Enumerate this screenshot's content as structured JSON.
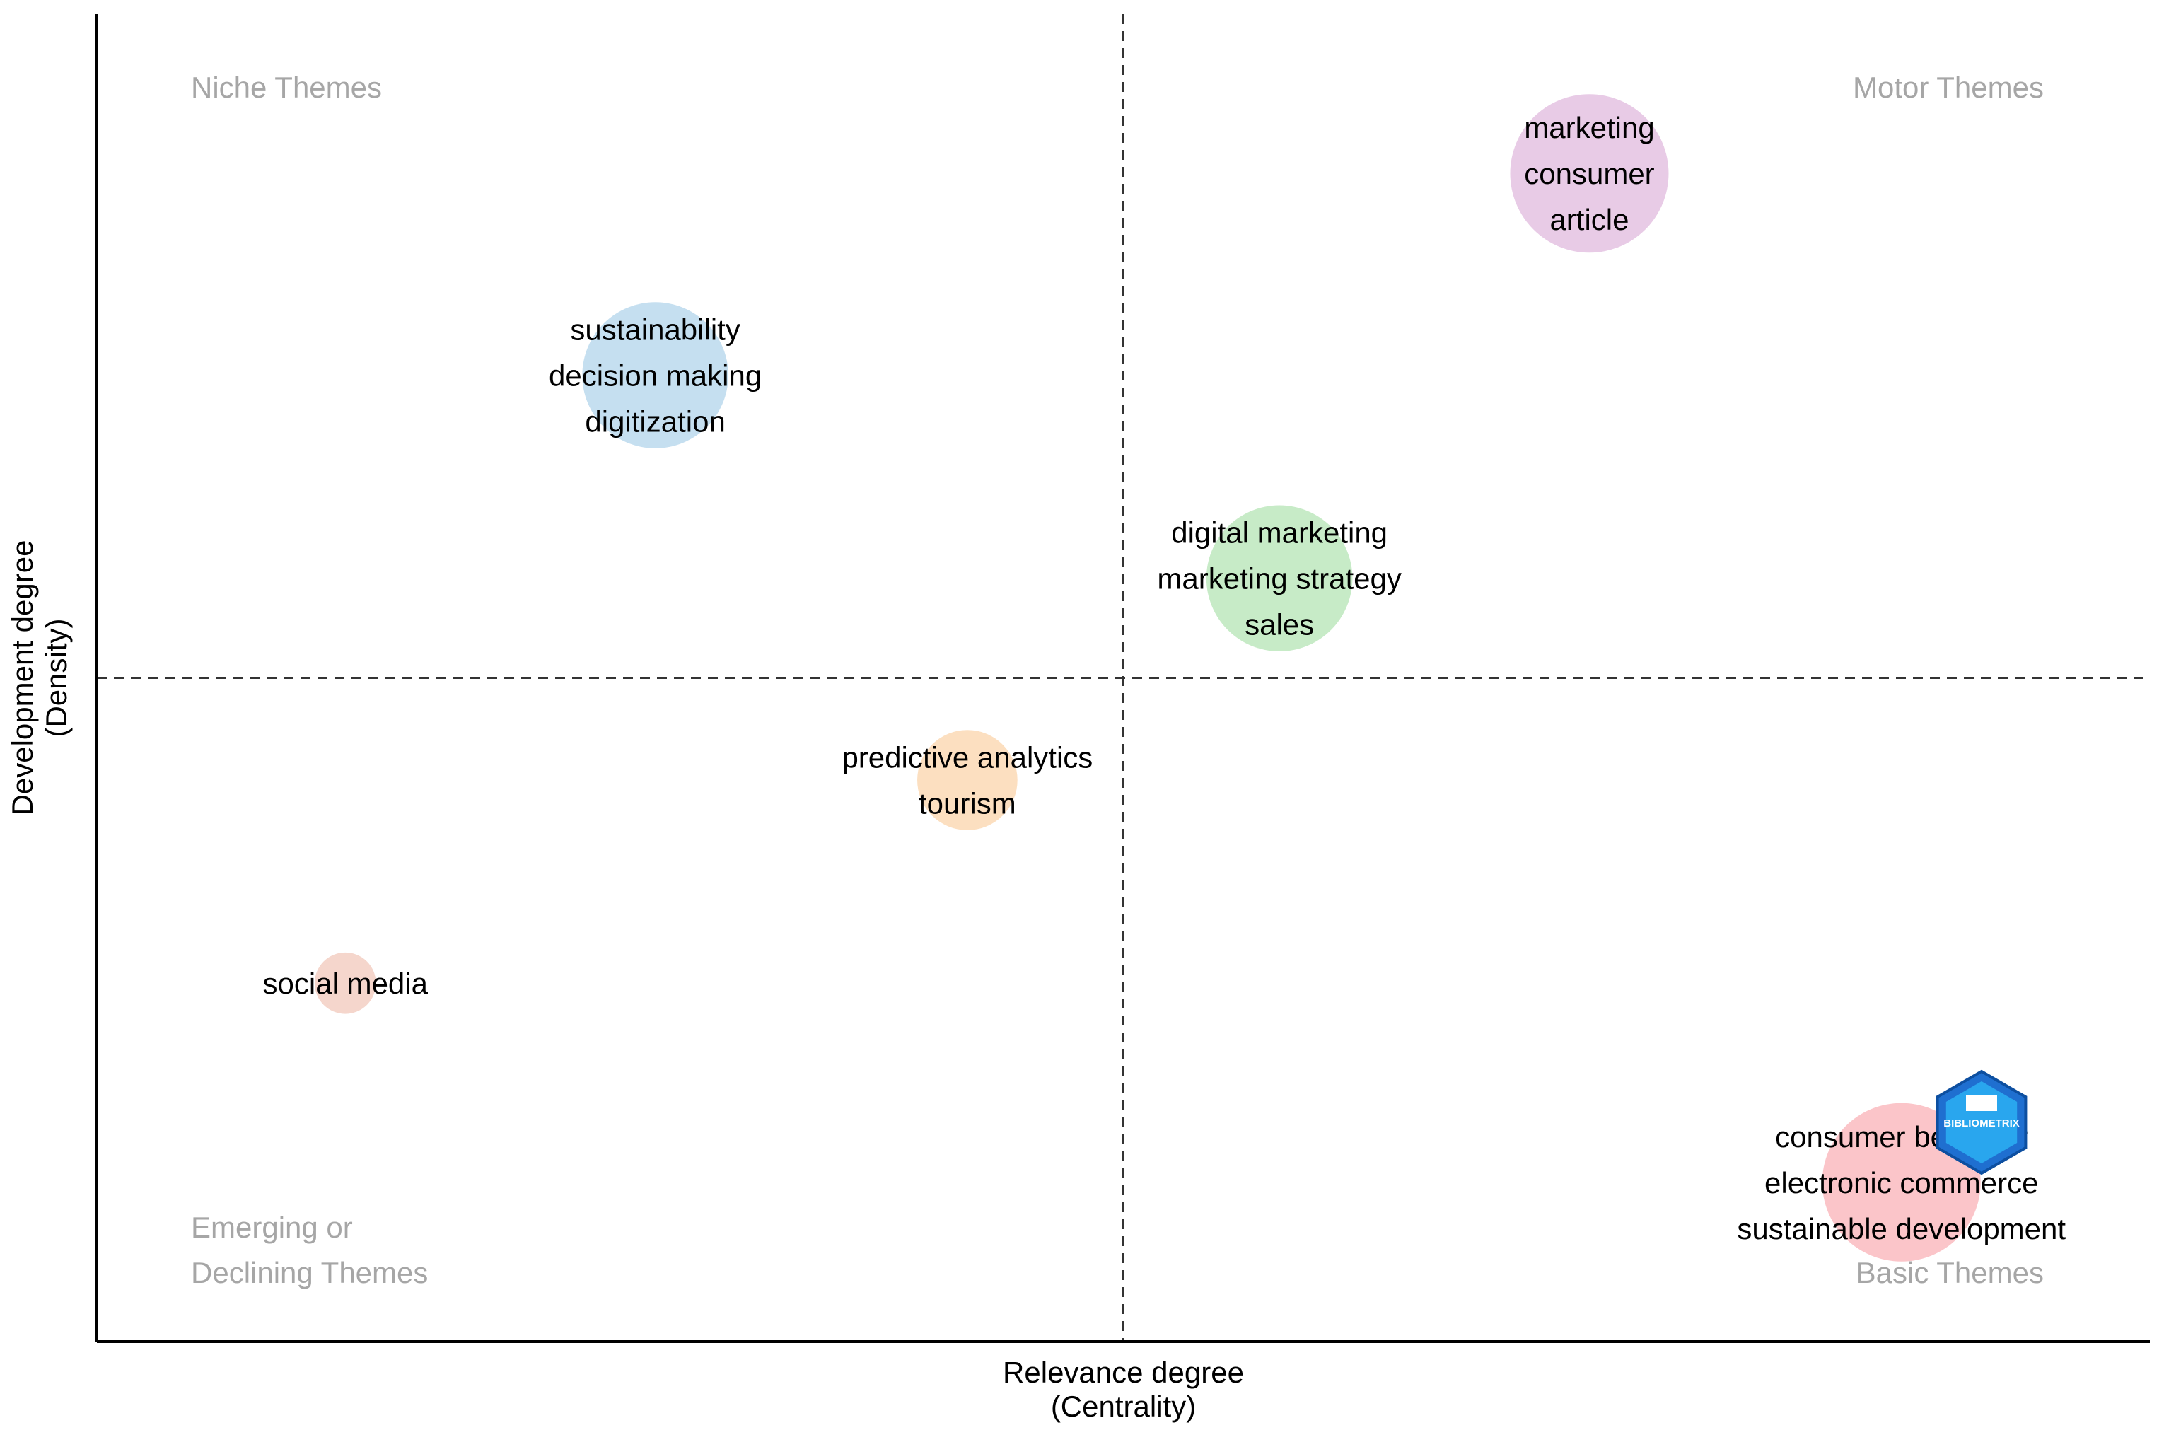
{
  "chart_data": {
    "type": "scatter",
    "title": "",
    "xlabel": [
      "Relevance degree",
      "(Centrality)"
    ],
    "ylabel": [
      "Development degree",
      "(Density)"
    ],
    "quadrants": {
      "top_left": [
        "Niche Themes"
      ],
      "top_right": [
        "Motor Themes"
      ],
      "bottom_left": [
        "Emerging or",
        "Declining Themes"
      ],
      "bottom_right": [
        "Basic Themes"
      ]
    },
    "xlim": [
      0,
      1
    ],
    "ylim": [
      0,
      1
    ],
    "reference_lines": {
      "x": 0.5,
      "y": 0.5
    },
    "clusters": [
      {
        "labels": [
          "marketing",
          "consumer",
          "article"
        ],
        "x": 0.727,
        "y": 0.88,
        "size": 1.0,
        "color": "#e8cbe6"
      },
      {
        "labels": [
          "sustainability",
          "decision making",
          "digitization"
        ],
        "x": 0.272,
        "y": 0.728,
        "size": 0.85,
        "color": "#c5dff0"
      },
      {
        "labels": [
          "digital marketing",
          "marketing strategy",
          "sales"
        ],
        "x": 0.576,
        "y": 0.575,
        "size": 0.85,
        "color": "#c7ebc7"
      },
      {
        "labels": [
          "predictive analytics",
          "tourism"
        ],
        "x": 0.424,
        "y": 0.423,
        "size": 0.4,
        "color": "#fcdfc0"
      },
      {
        "labels": [
          "social media"
        ],
        "x": 0.121,
        "y": 0.27,
        "size": 0.15,
        "color": "#f5d6cc"
      },
      {
        "labels": [
          "consumer behavior",
          "electronic commerce",
          "sustainable development"
        ],
        "x": 0.879,
        "y": 0.12,
        "size": 1.0,
        "color": "#fbc5c9"
      }
    ],
    "watermark": "BIBLIOMETRIX"
  }
}
